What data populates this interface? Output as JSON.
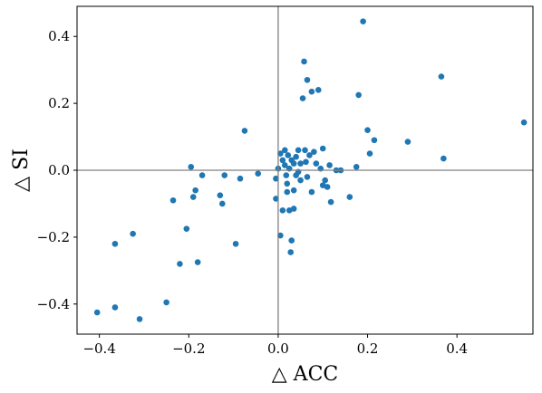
{
  "chart_data": {
    "type": "scatter",
    "xlabel": "△ ACC",
    "ylabel": "△ SI",
    "xlim": [
      -0.45,
      0.57
    ],
    "ylim": [
      -0.49,
      0.49
    ],
    "xticks": [
      -0.4,
      -0.2,
      0.0,
      0.2,
      0.4
    ],
    "yticks": [
      -0.4,
      -0.2,
      0.0,
      0.2,
      0.4
    ],
    "xtick_labels": [
      "−0.4",
      "−0.2",
      "0.0",
      "0.2",
      "0.4"
    ],
    "ytick_labels": [
      "−0.4",
      "−0.2",
      "0.0",
      "0.2",
      "0.4"
    ],
    "reference_lines": {
      "x": 0,
      "y": 0
    },
    "grid": false,
    "marker_color": "#1f77b4",
    "reference_line_color": "#808080",
    "series": [
      {
        "points": [
          [
            -0.405,
            -0.425
          ],
          [
            -0.365,
            -0.41
          ],
          [
            -0.31,
            -0.445
          ],
          [
            -0.25,
            -0.395
          ],
          [
            -0.365,
            -0.22
          ],
          [
            -0.325,
            -0.19
          ],
          [
            -0.22,
            -0.28
          ],
          [
            -0.18,
            -0.275
          ],
          [
            -0.205,
            -0.175
          ],
          [
            -0.235,
            -0.09
          ],
          [
            -0.195,
            0.01
          ],
          [
            -0.19,
            -0.08
          ],
          [
            -0.185,
            -0.06
          ],
          [
            -0.17,
            -0.015
          ],
          [
            -0.13,
            -0.075
          ],
          [
            -0.125,
            -0.1
          ],
          [
            -0.12,
            -0.015
          ],
          [
            -0.095,
            -0.22
          ],
          [
            -0.085,
            -0.025
          ],
          [
            -0.075,
            0.118
          ],
          [
            -0.045,
            -0.01
          ],
          [
            -0.005,
            -0.025
          ],
          [
            -0.005,
            -0.085
          ],
          [
            0.0,
            0.005
          ],
          [
            0.005,
            -0.195
          ],
          [
            0.01,
            -0.12
          ],
          [
            0.005,
            0.05
          ],
          [
            0.01,
            0.03
          ],
          [
            0.015,
            0.06
          ],
          [
            0.015,
            0.015
          ],
          [
            0.018,
            -0.015
          ],
          [
            0.02,
            -0.04
          ],
          [
            0.02,
            -0.065
          ],
          [
            0.022,
            0.045
          ],
          [
            0.025,
            0.005
          ],
          [
            0.025,
            -0.12
          ],
          [
            0.028,
            -0.245
          ],
          [
            0.03,
            -0.21
          ],
          [
            0.03,
            0.03
          ],
          [
            0.035,
            -0.115
          ],
          [
            0.035,
            0.02
          ],
          [
            0.035,
            -0.06
          ],
          [
            0.04,
            0.04
          ],
          [
            0.04,
            -0.015
          ],
          [
            0.045,
            0.06
          ],
          [
            0.045,
            -0.005
          ],
          [
            0.05,
            -0.03
          ],
          [
            0.05,
            0.02
          ],
          [
            0.055,
            0.215
          ],
          [
            0.058,
            0.325
          ],
          [
            0.06,
            0.06
          ],
          [
            0.062,
            0.025
          ],
          [
            0.065,
            0.27
          ],
          [
            0.065,
            -0.02
          ],
          [
            0.07,
            0.045
          ],
          [
            0.075,
            0.235
          ],
          [
            0.075,
            -0.065
          ],
          [
            0.08,
            0.055
          ],
          [
            0.085,
            0.02
          ],
          [
            0.09,
            0.24
          ],
          [
            0.095,
            0.005
          ],
          [
            0.1,
            -0.045
          ],
          [
            0.1,
            0.065
          ],
          [
            0.105,
            -0.03
          ],
          [
            0.11,
            -0.05
          ],
          [
            0.115,
            0.015
          ],
          [
            0.118,
            -0.095
          ],
          [
            0.13,
            0.0
          ],
          [
            0.14,
            0.0
          ],
          [
            0.16,
            -0.08
          ],
          [
            0.175,
            0.01
          ],
          [
            0.18,
            0.225
          ],
          [
            0.19,
            0.445
          ],
          [
            0.2,
            0.12
          ],
          [
            0.205,
            0.05
          ],
          [
            0.215,
            0.09
          ],
          [
            0.29,
            0.085
          ],
          [
            0.365,
            0.28
          ],
          [
            0.37,
            0.035
          ],
          [
            0.55,
            0.143
          ]
        ]
      }
    ]
  }
}
